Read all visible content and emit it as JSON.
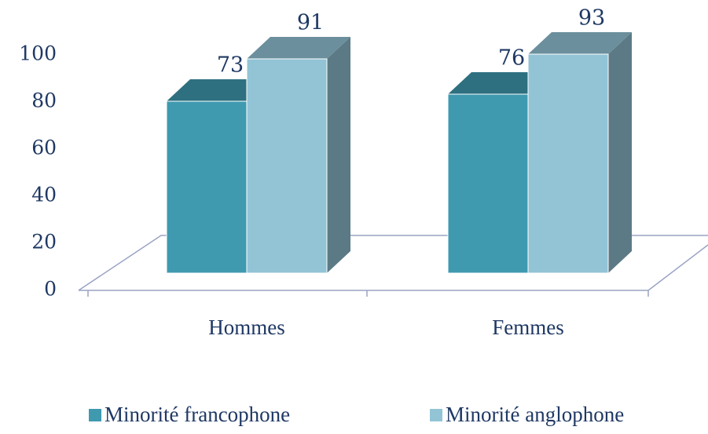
{
  "chart_data": {
    "type": "bar3d",
    "categories": [
      "Hommes",
      "Femmes"
    ],
    "series": [
      {
        "name": "Minorité francophone",
        "color": "#3f9ab0",
        "values": [
          73,
          76
        ]
      },
      {
        "name": "Minorité anglophone",
        "color": "#93c4d6",
        "values": [
          91,
          93
        ]
      }
    ],
    "ylim": [
      0,
      100
    ],
    "yticks": [
      0,
      20,
      40,
      60,
      80,
      100
    ]
  }
}
